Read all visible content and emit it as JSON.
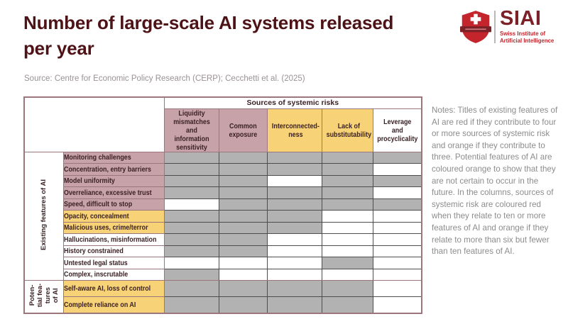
{
  "colors": {
    "title": "#4e1317",
    "table_text": "#3a2124",
    "red_tone": "#c7a2a9",
    "orange_tone": "#f7d276",
    "filled_cell": "#b2b2b2",
    "table_border": "#9b767d",
    "cell_border": "#4d4d4d",
    "notes_text": "#8c8c8c",
    "source_text": "#9a9295",
    "logo_red": "#c4242c",
    "logo_dark_red": "#7c2127"
  },
  "header": {
    "title": "Number of large-scale AI systems released\nper year",
    "source": "Source: Centre for Economic Policy Research (CERP); Cecchetti et al. (2025)"
  },
  "logo": {
    "acronym": "SIAI",
    "subtitle": "Swiss Institute of\nArtificial Intelligence"
  },
  "notes": "Notes: Titles of existing features of AI are red if they contribute to four or more sources of systemic risk and orange if they contribute to three. Potential features of AI are coloured orange to show that they are not certain to occur in the future. In the columns, sources of systemic risk are coloured red when they relate to ten or more features of AI and orange if they relate to more than six but fewer than ten features of AI.",
  "chart_data": {
    "type": "table",
    "title": "Number of large-scale AI systems released per year",
    "group_header": "Sources of systemic risks",
    "columns": [
      {
        "label": "Liquidity\nmismatches and\ninformation\nsensitivity",
        "tone": "red"
      },
      {
        "label": "Common\nexposure",
        "tone": "red"
      },
      {
        "label": "Interconnected-\nness",
        "tone": "orange"
      },
      {
        "label": "Lack of\nsubstitutability",
        "tone": "orange"
      },
      {
        "label": "Leverage and\nprocyclicality",
        "tone": "none"
      }
    ],
    "row_groups": [
      {
        "label": "Existing features of AI",
        "rows": [
          {
            "label": "Monitoring challenges",
            "tone": "red",
            "cells": [
              1,
              1,
              1,
              1,
              1
            ]
          },
          {
            "label": "Concentration, entry barriers",
            "tone": "red",
            "cells": [
              1,
              1,
              1,
              1,
              0
            ]
          },
          {
            "label": "Model uniformity",
            "tone": "red",
            "cells": [
              1,
              1,
              0,
              1,
              1
            ]
          },
          {
            "label": "Overreliance, excessive trust",
            "tone": "red",
            "cells": [
              1,
              1,
              1,
              1,
              0
            ]
          },
          {
            "label": "Speed, difficult to stop",
            "tone": "red",
            "cells": [
              0,
              1,
              1,
              1,
              1
            ]
          },
          {
            "label": "Opacity, concealment",
            "tone": "orange",
            "cells": [
              1,
              1,
              1,
              0,
              0
            ]
          },
          {
            "label": "Malicious uses, crime/terror",
            "tone": "orange",
            "cells": [
              1,
              1,
              1,
              0,
              0
            ]
          },
          {
            "label": "Hallucinations, misinformation",
            "tone": "none",
            "cells": [
              1,
              1,
              0,
              0,
              0
            ]
          },
          {
            "label": "History constrained",
            "tone": "none",
            "cells": [
              1,
              1,
              0,
              0,
              0
            ]
          },
          {
            "label": "Untested legal status",
            "tone": "none",
            "cells": [
              0,
              0,
              0,
              1,
              0
            ]
          },
          {
            "label": "Complex, inscrutable",
            "tone": "none",
            "cells": [
              1,
              0,
              0,
              0,
              0
            ]
          }
        ]
      },
      {
        "label": "Poten-\ntial fea-\ntures\nof AI",
        "rows": [
          {
            "label": "Self-aware AI, loss of control",
            "tone": "orange",
            "cells": [
              1,
              1,
              1,
              1,
              0
            ]
          },
          {
            "label": "Complete reliance on AI",
            "tone": "orange",
            "cells": [
              1,
              1,
              1,
              1,
              0
            ]
          }
        ]
      }
    ]
  }
}
